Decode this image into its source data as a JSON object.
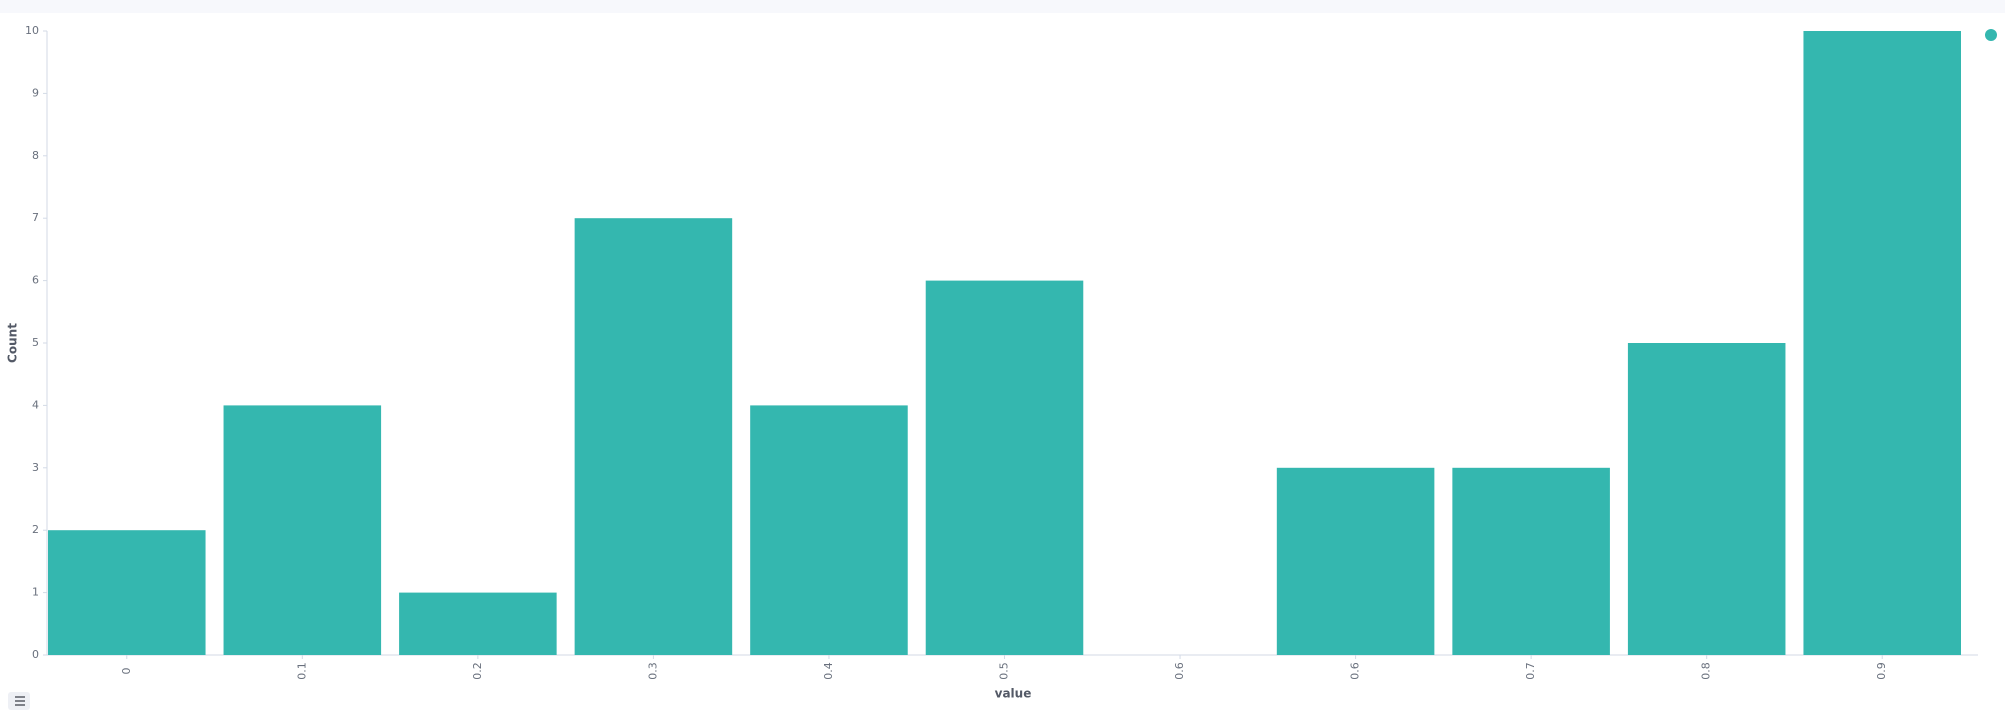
{
  "chart_data": {
    "type": "bar",
    "y_label": "Count",
    "x_label": "value",
    "categories": [
      "0",
      "0.1",
      "0.2",
      "0.3",
      "0.4",
      "0.5",
      "0.6",
      "0.6",
      "0.7",
      "0.8",
      "0.9"
    ],
    "values": [
      2,
      4,
      1,
      7,
      4,
      6,
      0,
      3,
      3,
      5,
      10
    ],
    "color": "#34b7af",
    "ylim": [
      0,
      10
    ],
    "yticks": [
      0,
      1,
      2,
      3,
      4,
      5,
      6,
      7,
      8,
      9,
      10
    ],
    "legend": "top-right"
  }
}
